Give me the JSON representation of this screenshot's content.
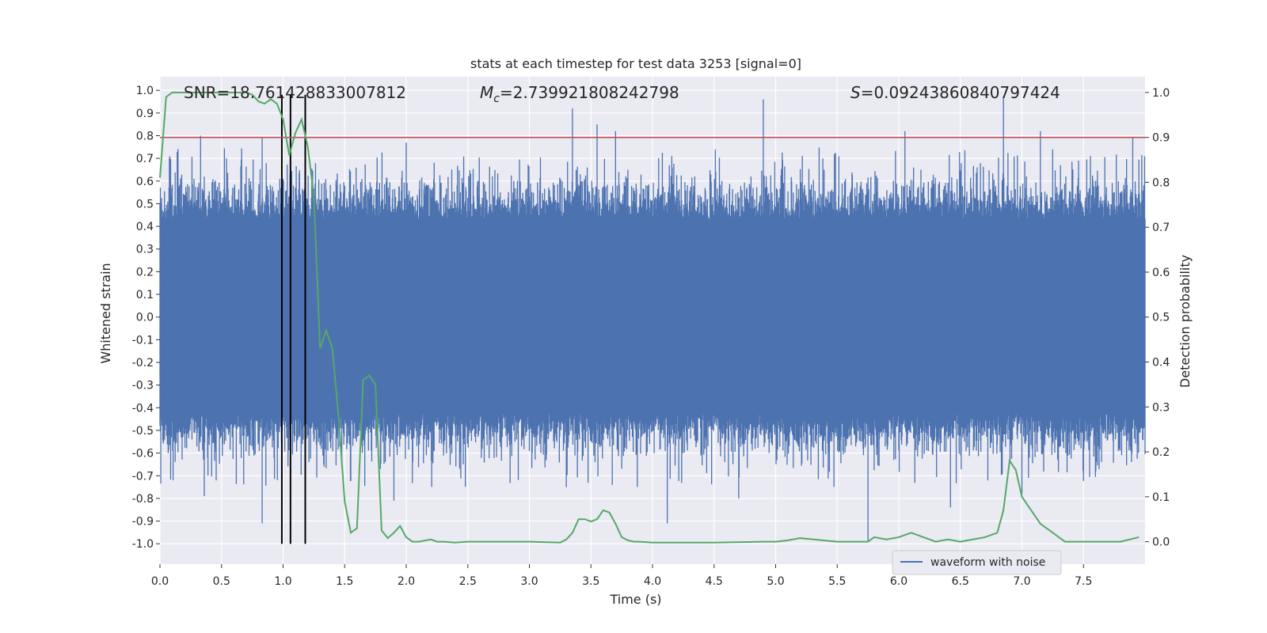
{
  "chart_data": {
    "type": "line",
    "title": "stats at each timestep for test data 3253 [signal=0]",
    "xlabel": "Time (s)",
    "ylabel_left": "Whitened strain",
    "ylabel_right": "Detection probability",
    "xlim": [
      0.0,
      8.0
    ],
    "ylim_left": [
      -1.09,
      1.06
    ],
    "ylim_right": [
      -0.05,
      1.035
    ],
    "x_ticks": [
      "0.0",
      "0.5",
      "1.0",
      "1.5",
      "2.0",
      "2.5",
      "3.0",
      "3.5",
      "4.0",
      "4.5",
      "5.0",
      "5.5",
      "6.0",
      "6.5",
      "7.0",
      "7.5"
    ],
    "x_tick_values": [
      0.0,
      0.5,
      1.0,
      1.5,
      2.0,
      2.5,
      3.0,
      3.5,
      4.0,
      4.5,
      5.0,
      5.5,
      6.0,
      6.5,
      7.0,
      7.5
    ],
    "y_ticks_left": [
      "1.0",
      "0.9",
      "0.8",
      "0.7",
      "0.6",
      "0.5",
      "0.4",
      "0.3",
      "0.2",
      "0.1",
      "0.0",
      "-0.1",
      "-0.2",
      "-0.3",
      "-0.4",
      "-0.5",
      "-0.6",
      "-0.7",
      "-0.8",
      "-0.9",
      "-1.0"
    ],
    "y_tick_values_left": [
      1.0,
      0.9,
      0.8,
      0.7,
      0.6,
      0.5,
      0.4,
      0.3,
      0.2,
      0.1,
      0.0,
      -0.1,
      -0.2,
      -0.3,
      -0.4,
      -0.5,
      -0.6,
      -0.7,
      -0.8,
      -0.9,
      -1.0
    ],
    "y_ticks_right": [
      "1.0",
      "0.9",
      "0.8",
      "0.7",
      "0.6",
      "0.5",
      "0.4",
      "0.3",
      "0.2",
      "0.1",
      "0.0"
    ],
    "y_tick_values_right": [
      1.0,
      0.9,
      0.8,
      0.7,
      0.6,
      0.5,
      0.4,
      0.3,
      0.2,
      0.1,
      0.0
    ],
    "annotations": [
      {
        "text": "SNR=18.761428833007812"
      },
      {
        "prefix": "M",
        "sub": "c",
        "text": "=2.739921808242798"
      },
      {
        "prefix": "S",
        "text": "=0.09243860840797424"
      }
    ],
    "threshold": {
      "axis": "right",
      "y": 0.9,
      "color": "#c44e52"
    },
    "vertical_lines": {
      "x": [
        0.99,
        1.06,
        1.18
      ],
      "ymin": -1.0,
      "ymax": 0.98,
      "color": "#000000"
    },
    "legend": {
      "entries": [
        "waveform with noise"
      ],
      "placement": "lower-right"
    },
    "grid": true,
    "series": [
      {
        "name": "waveform with noise",
        "axis": "left",
        "color": "#4c72b0",
        "kind": "noise-band",
        "x_range": [
          0.0,
          8.0
        ],
        "typical_amplitude": 0.55,
        "peaks": [
          {
            "x": 0.33,
            "y": 0.8
          },
          {
            "x": 0.83,
            "y": 0.79
          },
          {
            "x": 0.99,
            "y": 0.7
          },
          {
            "x": 2.0,
            "y": 0.77
          },
          {
            "x": 3.35,
            "y": 0.92
          },
          {
            "x": 3.55,
            "y": 0.85
          },
          {
            "x": 3.7,
            "y": 0.82
          },
          {
            "x": 4.9,
            "y": 0.96
          },
          {
            "x": 6.05,
            "y": 0.82
          },
          {
            "x": 6.85,
            "y": 0.97
          },
          {
            "x": 7.15,
            "y": 0.82
          },
          {
            "x": 7.9,
            "y": 0.79
          }
        ],
        "troughs": [
          {
            "x": 0.36,
            "y": -0.79
          },
          {
            "x": 0.83,
            "y": -0.91
          },
          {
            "x": 1.9,
            "y": -0.81
          },
          {
            "x": 4.12,
            "y": -0.91
          },
          {
            "x": 5.75,
            "y": -0.99
          },
          {
            "x": 6.42,
            "y": -0.84
          },
          {
            "x": 7.0,
            "y": -0.78
          },
          {
            "x": 4.7,
            "y": -0.8
          },
          {
            "x": 3.3,
            "y": -0.75
          }
        ]
      },
      {
        "name": "",
        "axis": "right",
        "color": "#55a868",
        "x": [
          0.0,
          0.05,
          0.1,
          0.3,
          0.5,
          0.7,
          0.75,
          0.8,
          0.85,
          0.9,
          0.95,
          1.0,
          1.05,
          1.1,
          1.15,
          1.2,
          1.25,
          1.3,
          1.35,
          1.4,
          1.45,
          1.5,
          1.55,
          1.6,
          1.65,
          1.7,
          1.75,
          1.8,
          1.85,
          1.9,
          1.95,
          2.0,
          2.05,
          2.1,
          2.2,
          2.25,
          2.3,
          2.4,
          2.5,
          2.6,
          3.0,
          3.25,
          3.3,
          3.35,
          3.4,
          3.45,
          3.5,
          3.55,
          3.6,
          3.65,
          3.7,
          3.75,
          3.8,
          3.85,
          3.9,
          4.0,
          4.5,
          4.9,
          5.0,
          5.1,
          5.2,
          5.5,
          5.6,
          5.7,
          5.75,
          5.8,
          5.9,
          6.0,
          6.1,
          6.15,
          6.2,
          6.3,
          6.4,
          6.5,
          6.6,
          6.7,
          6.8,
          6.85,
          6.9,
          6.95,
          7.0,
          7.05,
          7.1,
          7.15,
          7.2,
          7.3,
          7.35,
          7.4,
          7.6,
          7.8,
          7.95
        ],
        "values": [
          0.81,
          0.99,
          1.0,
          1.0,
          1.0,
          1.0,
          0.995,
          0.98,
          0.975,
          0.985,
          0.975,
          0.94,
          0.86,
          0.91,
          0.94,
          0.88,
          0.77,
          0.43,
          0.47,
          0.43,
          0.28,
          0.09,
          0.02,
          0.03,
          0.36,
          0.37,
          0.35,
          0.025,
          0.008,
          0.02,
          0.035,
          0.01,
          0.0,
          0.0,
          0.005,
          0.0,
          0.0,
          -0.002,
          0.0,
          0.0,
          0.0,
          -0.002,
          0.005,
          0.02,
          0.05,
          0.05,
          0.045,
          0.05,
          0.07,
          0.065,
          0.04,
          0.01,
          0.003,
          0.0,
          0.0,
          -0.002,
          -0.002,
          0.0,
          0.0,
          0.003,
          0.008,
          0.0,
          0.0,
          0.0,
          0.0,
          0.01,
          0.005,
          0.01,
          0.02,
          0.015,
          0.01,
          0.0,
          0.005,
          0.0,
          0.005,
          0.01,
          0.02,
          0.07,
          0.18,
          0.16,
          0.1,
          0.08,
          0.06,
          0.04,
          0.03,
          0.01,
          0.0,
          0.0,
          0.0,
          0.0,
          0.01
        ]
      }
    ]
  }
}
